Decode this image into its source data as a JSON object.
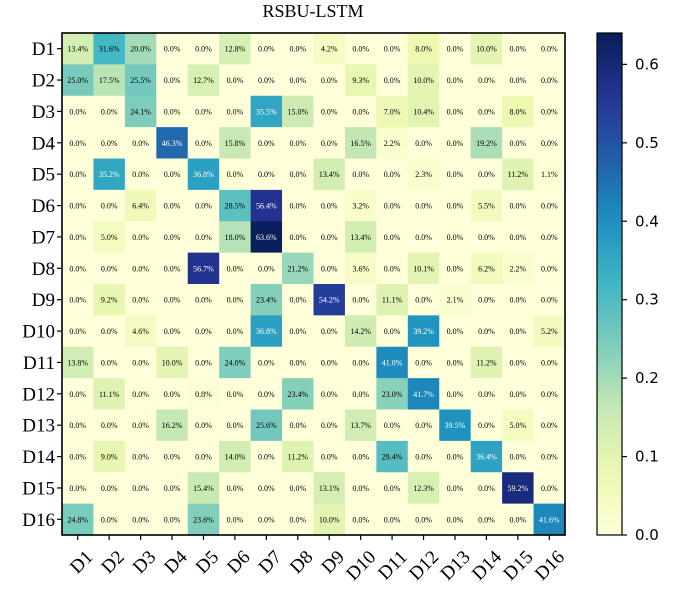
{
  "chart_data": {
    "type": "heatmap",
    "title": "RSBU-LSTM",
    "row_labels": [
      "D1",
      "D2",
      "D3",
      "D4",
      "D5",
      "D6",
      "D7",
      "D8",
      "D9",
      "D10",
      "D11",
      "D12",
      "D13",
      "D14",
      "D15",
      "D16"
    ],
    "col_labels": [
      "D1",
      "D2",
      "D3",
      "D4",
      "D5",
      "D6",
      "D7",
      "D8",
      "D9",
      "D10",
      "D11",
      "D12",
      "D13",
      "D14",
      "D15",
      "D16"
    ],
    "values": [
      [
        0.134,
        0.316,
        0.2,
        0.0,
        0.0,
        0.128,
        0.0,
        0.0,
        0.042,
        0.0,
        0.0,
        0.08,
        0.0,
        0.1,
        0.0,
        0.0
      ],
      [
        0.25,
        0.175,
        0.255,
        0.0,
        0.127,
        0.0,
        0.0,
        0.0,
        0.0,
        0.093,
        0.0,
        0.1,
        0.0,
        0.0,
        0.0,
        0.0
      ],
      [
        0.0,
        0.0,
        0.241,
        0.0,
        0.0,
        0.0,
        0.355,
        0.15,
        0.0,
        0.0,
        0.07,
        0.104,
        0.0,
        0.0,
        0.08,
        0.0
      ],
      [
        0.0,
        0.0,
        0.0,
        0.463,
        0.0,
        0.158,
        0.0,
        0.0,
        0.0,
        0.165,
        0.022,
        0.0,
        0.0,
        0.192,
        0.0,
        0.0
      ],
      [
        0.0,
        0.352,
        0.0,
        0.0,
        0.368,
        0.0,
        0.0,
        0.0,
        0.134,
        0.0,
        0.0,
        0.023,
        0.0,
        0.0,
        0.112,
        0.011
      ],
      [
        0.0,
        0.0,
        0.064,
        0.0,
        0.0,
        0.285,
        0.564,
        0.0,
        0.0,
        0.032,
        0.0,
        0.0,
        0.0,
        0.055,
        0.0,
        0.0
      ],
      [
        0.0,
        0.05,
        0.0,
        0.0,
        0.0,
        0.18,
        0.636,
        0.0,
        0.0,
        0.134,
        0.0,
        0.0,
        0.0,
        0.0,
        0.0,
        0.0
      ],
      [
        0.0,
        0.0,
        0.0,
        0.0,
        0.567,
        0.0,
        0.0,
        0.212,
        0.0,
        0.036,
        0.0,
        0.101,
        0.0,
        0.062,
        0.022,
        0.0
      ],
      [
        0.0,
        0.092,
        0.0,
        0.0,
        0.0,
        0.0,
        0.234,
        0.0,
        0.542,
        0.0,
        0.111,
        0.0,
        0.021,
        0.0,
        0.0,
        0.0
      ],
      [
        0.0,
        0.0,
        0.046,
        0.0,
        0.0,
        0.0,
        0.368,
        0.0,
        0.0,
        0.142,
        0.0,
        0.392,
        0.0,
        0.0,
        0.0,
        0.052
      ],
      [
        0.138,
        0.0,
        0.0,
        0.1,
        0.0,
        0.24,
        0.0,
        0.0,
        0.0,
        0.0,
        0.41,
        0.0,
        0.0,
        0.112,
        0.0,
        0.0
      ],
      [
        0.0,
        0.111,
        0.0,
        0.0,
        0.008,
        0.0,
        0.0,
        0.234,
        0.0,
        0.0,
        0.23,
        0.417,
        0.0,
        0.0,
        0.0,
        0.0
      ],
      [
        0.0,
        0.0,
        0.0,
        0.162,
        0.0,
        0.0,
        0.256,
        0.0,
        0.0,
        0.137,
        0.0,
        0.0,
        0.395,
        0.0,
        0.05,
        0.0
      ],
      [
        0.0,
        0.09,
        0.0,
        0.0,
        0.0,
        0.14,
        0.0,
        0.112,
        0.0,
        0.0,
        0.294,
        0.0,
        0.0,
        0.364,
        0.0,
        0.0
      ],
      [
        0.0,
        0.0,
        0.0,
        0.0,
        0.154,
        0.0,
        0.0,
        0.0,
        0.131,
        0.0,
        0.0,
        0.123,
        0.0,
        0.0,
        0.592,
        0.0
      ],
      [
        0.248,
        0.0,
        0.0,
        0.0,
        0.236,
        0.0,
        0.0,
        0.0,
        0.1,
        0.0,
        0.0,
        0.0,
        0.0,
        0.0,
        0.0,
        0.416
      ]
    ],
    "cell_labels": [
      [
        "13.4%",
        "31.6%",
        "20.0%",
        "0.0%",
        "0.0%",
        "12.8%",
        "0.0%",
        "0.0%",
        "4.2%",
        "0.0%",
        "0.0%",
        "8.0%",
        "0.0%",
        "10.0%",
        "0.0%",
        "0.0%"
      ],
      [
        "25.0%",
        "17.5%",
        "25.5%",
        "0.0%",
        "12.7%",
        "0.0%",
        "0.0%",
        "0.0%",
        "0.0%",
        "9.3%",
        "0.0%",
        "10.0%",
        "0.0%",
        "0.0%",
        "0.0%",
        "0.0%"
      ],
      [
        "0.0%",
        "0.0%",
        "24.1%",
        "0.0%",
        "0.0%",
        "0.0%",
        "35.5%",
        "15.0%",
        "0.0%",
        "0.0%",
        "7.0%",
        "10.4%",
        "0.0%",
        "0.0%",
        "8.0%",
        "0.0%"
      ],
      [
        "0.0%",
        "0.0%",
        "0.0%",
        "46.3%",
        "0.0%",
        "15.8%",
        "0.0%",
        "0.0%",
        "0.0%",
        "16.5%",
        "2.2%",
        "0.0%",
        "0.0%",
        "19.2%",
        "0.0%",
        "0.0%"
      ],
      [
        "0.0%",
        "35.2%",
        "0.0%",
        "0.0%",
        "36.8%",
        "0.0%",
        "0.0%",
        "0.0%",
        "13.4%",
        "0.0%",
        "0.0%",
        "2.3%",
        "0.0%",
        "0.0%",
        "11.2%",
        "1.1%"
      ],
      [
        "0.0%",
        "0.0%",
        "6.4%",
        "0.0%",
        "0.0%",
        "28.5%",
        "56.4%",
        "0.0%",
        "0.0%",
        "3.2%",
        "0.0%",
        "0.0%",
        "0.0%",
        "5.5%",
        "0.0%",
        "0.0%"
      ],
      [
        "0.0%",
        "5.0%",
        "0.0%",
        "0.0%",
        "0.0%",
        "18.0%",
        "63.6%",
        "0.0%",
        "0.0%",
        "13.4%",
        "0.0%",
        "0.0%",
        "0.0%",
        "0.0%",
        "0.0%",
        "0.0%"
      ],
      [
        "0.0%",
        "0.0%",
        "0.0%",
        "0.0%",
        "56.7%",
        "0.0%",
        "0.0%",
        "21.2%",
        "0.0%",
        "3.6%",
        "0.0%",
        "10.1%",
        "0.0%",
        "6.2%",
        "2.2%",
        "0.0%"
      ],
      [
        "0.0%",
        "9.2%",
        "0.0%",
        "0.0%",
        "0.0%",
        "0.0%",
        "23.4%",
        "0.0%",
        "54.2%",
        "0.0%",
        "11.1%",
        "0.0%",
        "2.1%",
        "0.0%",
        "0.0%",
        "0.0%"
      ],
      [
        "0.0%",
        "0.0%",
        "4.6%",
        "0.0%",
        "0.0%",
        "0.0%",
        "36.8%",
        "0.0%",
        "0.0%",
        "14.2%",
        "0.0%",
        "39.2%",
        "0.0%",
        "0.0%",
        "0.0%",
        "5.2%"
      ],
      [
        "13.8%",
        "0.0%",
        "0.0%",
        "10.0%",
        "0.0%",
        "24.0%",
        "0.0%",
        "0.0%",
        "0.0%",
        "0.0%",
        "41.0%",
        "0.0%",
        "0.0%",
        "11.2%",
        "0.0%",
        "0.0%"
      ],
      [
        "0.0%",
        "11.1%",
        "0.0%",
        "0.0%",
        "0.8%",
        "0.0%",
        "0.0%",
        "23.4%",
        "0.0%",
        "0.0%",
        "23.0%",
        "41.7%",
        "0.0%",
        "0.0%",
        "0.0%",
        "0.0%"
      ],
      [
        "0.0%",
        "0.0%",
        "0.0%",
        "16.2%",
        "0.0%",
        "0.0%",
        "25.6%",
        "0.0%",
        "0.0%",
        "13.7%",
        "0.0%",
        "0.0%",
        "39.5%",
        "0.0%",
        "5.0%",
        "0.0%"
      ],
      [
        "0.0%",
        "9.0%",
        "0.0%",
        "0.0%",
        "0.0%",
        "14.0%",
        "0.0%",
        "11.2%",
        "0.0%",
        "0.0%",
        "29.4%",
        "0.0%",
        "0.0%",
        "36.4%",
        "0.0%",
        "0.0%"
      ],
      [
        "0.0%",
        "0.0%",
        "0.0%",
        "0.0%",
        "15.4%",
        "0.0%",
        "0.0%",
        "0.0%",
        "13.1%",
        "0.0%",
        "0.0%",
        "12.3%",
        "0.0%",
        "0.0%",
        "59.2%",
        "0.0%"
      ],
      [
        "24.8%",
        "0.0%",
        "0.0%",
        "0.0%",
        "23.6%",
        "0.0%",
        "0.0%",
        "0.0%",
        "10.0%",
        "0.0%",
        "0.0%",
        "0.0%",
        "0.0%",
        "0.0%",
        "0.0%",
        "41.6%"
      ]
    ],
    "colorbar": {
      "range": [
        0,
        0.64
      ],
      "ticks": [
        0.0,
        0.1,
        0.2,
        0.3,
        0.4,
        0.5,
        0.6
      ],
      "tick_labels": [
        "0.0",
        "0.1",
        "0.2",
        "0.3",
        "0.4",
        "0.5",
        "0.6"
      ],
      "colormap": "YlGnBu"
    },
    "grid": false,
    "xlabel": "",
    "ylabel": ""
  }
}
